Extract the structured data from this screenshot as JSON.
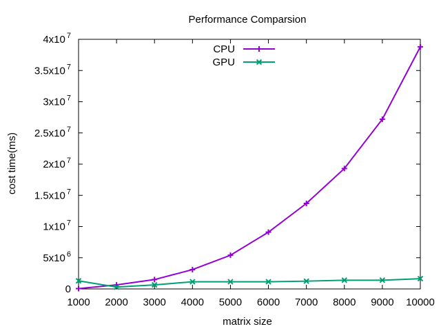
{
  "chart_data": {
    "type": "line",
    "title": "Performance Comparsion",
    "xlabel": "matrix size",
    "ylabel": "cost time(ms)",
    "x": [
      1000,
      2000,
      3000,
      4000,
      5000,
      6000,
      7000,
      8000,
      9000,
      10000
    ],
    "xlim": [
      1000,
      10000
    ],
    "ylim": [
      0,
      40000000
    ],
    "x_ticks": [
      "1000",
      "2000",
      "3000",
      "4000",
      "5000",
      "6000",
      "7000",
      "8000",
      "9000",
      "10000"
    ],
    "y_ticks": [
      {
        "value": 0,
        "mantissa": "0",
        "exp": ""
      },
      {
        "value": 5000000,
        "mantissa": "5x10",
        "exp": "6"
      },
      {
        "value": 10000000,
        "mantissa": "1x10",
        "exp": "7"
      },
      {
        "value": 15000000,
        "mantissa": "1.5x10",
        "exp": "7"
      },
      {
        "value": 20000000,
        "mantissa": "2x10",
        "exp": "7"
      },
      {
        "value": 25000000,
        "mantissa": "2.5x10",
        "exp": "7"
      },
      {
        "value": 30000000,
        "mantissa": "3x10",
        "exp": "7"
      },
      {
        "value": 35000000,
        "mantissa": "3.5x10",
        "exp": "7"
      },
      {
        "value": 40000000,
        "mantissa": "4x10",
        "exp": "7"
      }
    ],
    "grid": false,
    "legend_position": "top-center",
    "series": [
      {
        "name": "CPU",
        "color": "#9400d3",
        "marker": "plus",
        "values": [
          50000,
          650000,
          1500000,
          3100000,
          5400000,
          9100000,
          13700000,
          19300000,
          27200000,
          38800000
        ]
      },
      {
        "name": "GPU",
        "color": "#009e73",
        "marker": "cross",
        "values": [
          1300000,
          300000,
          650000,
          1150000,
          1150000,
          1150000,
          1250000,
          1400000,
          1400000,
          1650000
        ]
      }
    ]
  }
}
